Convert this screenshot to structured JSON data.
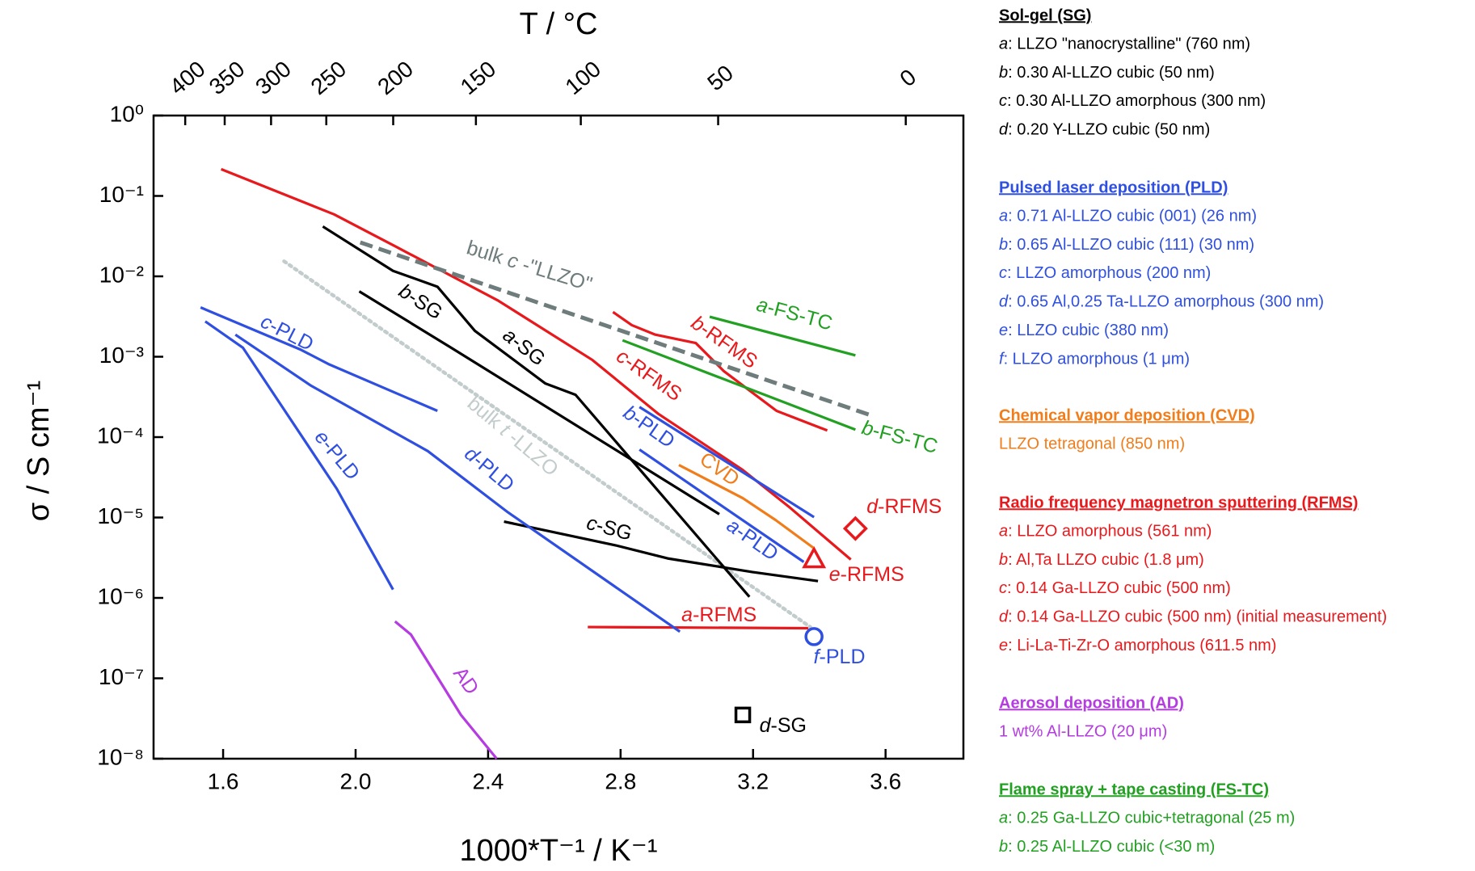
{
  "chart_data": {
    "type": "line",
    "x_label": "1000*T⁻¹ / K⁻¹",
    "y_label": "σ / S cm⁻¹",
    "x2_label": "T / °C",
    "xlim": [
      1.39,
      3.835
    ],
    "xticks": [
      1.6,
      {
        "value": 2,
        "label": "2.0"
      },
      2.4,
      2.8,
      3.2,
      3.6
    ],
    "x2ticks": [
      400,
      350,
      300,
      250,
      200,
      150,
      100,
      50,
      0
    ],
    "ylim": [
      1e-08,
      1
    ],
    "log_y": true,
    "yticks": [
      {
        "value": 1,
        "label": "10⁰"
      },
      {
        "value": 0.1,
        "label": "10⁻¹"
      },
      {
        "value": 0.01,
        "label": "10⁻²"
      },
      {
        "value": 0.001,
        "label": "10⁻³"
      },
      {
        "value": 0.0001,
        "label": "10⁻⁴"
      },
      {
        "value": 1e-05,
        "label": "10⁻⁵"
      },
      {
        "value": 1e-06,
        "label": "10⁻⁶"
      },
      {
        "value": 1e-07,
        "label": "10⁻⁷"
      },
      {
        "value": 1e-08,
        "label": "10⁻⁸"
      }
    ],
    "series": [
      {
        "name": "c-RFMS",
        "color": "#e8191c",
        "x": [
          1.594,
          1.935,
          2.119,
          2.431,
          2.715,
          2.913,
          3.169,
          3.311,
          3.495
        ],
        "values": [
          0.215,
          0.059,
          0.0237,
          0.00497,
          0.00091,
          0.000196,
          3.9e-05,
          1.33e-05,
          3e-06
        ]
      },
      {
        "name": "b-RFMS",
        "color": "#e8191c",
        "x": [
          2.777,
          2.834,
          2.905,
          3.027,
          3.112,
          3.271,
          3.424
        ],
        "values": [
          0.0036,
          0.00247,
          0.00188,
          0.00148,
          0.00066,
          0.000212,
          0.000121
        ]
      },
      {
        "name": "a-RFMS",
        "color": "#e8191c",
        "x": [
          2.701,
          3.367
        ],
        "values": [
          4.34e-07,
          4.2e-07
        ]
      },
      {
        "name": "d-RFMS",
        "color": "#e8191c",
        "marker": "diamond",
        "x": [
          3.509
        ],
        "values": [
          7.3e-06
        ]
      },
      {
        "name": "e-RFMS",
        "color": "#e8191c",
        "marker": "triangle",
        "x": [
          3.384
        ],
        "values": [
          3e-06
        ]
      },
      {
        "name": "a-FS-TC",
        "color": "#22a022",
        "x": [
          3.069,
          3.509
        ],
        "values": [
          0.00314,
          0.00104
        ]
      },
      {
        "name": "b-FS-TC",
        "color": "#22a022",
        "x": [
          2.806,
          3.509
        ],
        "values": [
          0.0016,
          0.000124
        ]
      },
      {
        "name": "bulk c -\"LLZO\"",
        "color": "#6f7c7c",
        "style": "dashed",
        "x": [
          2.014,
          3.566
        ],
        "values": [
          0.0264,
          0.000181
        ]
      },
      {
        "name": "bulk t -LLZO",
        "color": "#c3cccc",
        "style": "dotted",
        "x": [
          1.784,
          3.373
        ],
        "values": [
          0.0154,
          4.34e-07
        ]
      },
      {
        "name": "a-SG",
        "color": "#000000",
        "x": [
          1.901,
          2.113,
          2.247,
          2.36,
          2.573,
          2.664,
          3.189
        ],
        "values": [
          0.0417,
          0.0117,
          0.00743,
          0.0021,
          0.000464,
          0.000336,
          1.03e-06
        ]
      },
      {
        "name": "b-SG",
        "color": "#000000",
        "x": [
          2.011,
          2.289,
          3.098
        ],
        "values": [
          0.0065,
          0.00129,
          1.1e-05
        ]
      },
      {
        "name": "c-SG",
        "color": "#000000",
        "x": [
          2.448,
          2.786,
          2.942,
          3.197,
          3.396
        ],
        "values": [
          8.9e-06,
          4.5e-06,
          3.1e-06,
          2.1e-06,
          1.62e-06
        ]
      },
      {
        "name": "d-SG",
        "color": "#000000",
        "marker": "square",
        "x": [
          3.169
        ],
        "values": [
          3.5e-08
        ]
      },
      {
        "name": "c-PLD",
        "color": "#2f4fe0",
        "x": [
          1.532,
          1.835,
          1.921,
          2.247
        ],
        "values": [
          0.0041,
          0.00122,
          0.0008,
          0.000212
        ]
      },
      {
        "name": "e-PLD",
        "color": "#2f4fe0",
        "x": [
          1.546,
          1.66,
          1.943,
          2.113
        ],
        "values": [
          0.00275,
          0.00129,
          2.28e-05,
          1.27e-06
        ]
      },
      {
        "name": "d-PLD",
        "color": "#2f4fe0",
        "x": [
          1.637,
          1.864,
          2.218,
          2.46,
          2.979
        ],
        "values": [
          0.00188,
          0.00044,
          6.7e-05,
          1.16e-05,
          3.8e-07
        ]
      },
      {
        "name": "b-PLD",
        "color": "#2f4fe0",
        "x": [
          2.857,
          3.384
        ],
        "values": [
          0.000237,
          1.01e-05
        ]
      },
      {
        "name": "a-PLD",
        "color": "#2f4fe0",
        "x": [
          2.857,
          3.353
        ],
        "values": [
          7e-05,
          2.8e-06
        ]
      },
      {
        "name": "f-PLD",
        "color": "#2f4fe0",
        "marker": "circle",
        "x": [
          3.384
        ],
        "values": [
          3.3e-07
        ]
      },
      {
        "name": "CVD",
        "color": "#f07d1a",
        "x": [
          2.976,
          3.169,
          3.268,
          3.382
        ],
        "values": [
          4.5e-05,
          1.74e-05,
          9.3e-06,
          4.2e-06
        ]
      },
      {
        "name": "AD",
        "color": "#b43ce0",
        "x": [
          2.119,
          2.167,
          2.318,
          2.426
        ],
        "values": [
          5.1e-07,
          3.5e-07,
          3.5e-08,
          1e-08
        ]
      }
    ],
    "legend_panel": [
      {
        "heading": "Sol-gel (SG)",
        "color": "#000000",
        "items": [
          "a: LLZO \"nanocrystalline\" (760 nm)",
          "b: 0.30 Al-LLZO cubic (50 nm)",
          "c: 0.30 Al-LLZO amorphous (300 nm)",
          "d: 0.20 Y-LLZO cubic (50 nm)"
        ]
      },
      {
        "heading": "Pulsed laser deposition (PLD)",
        "color": "#2f4fe0",
        "items": [
          "a: 0.71 Al-LLZO cubic (001) (26 nm)",
          "b: 0.65 Al-LLZO cubic (111) (30 nm)",
          "c: LLZO amorphous (200 nm)",
          "d: 0.65 Al,0.25 Ta-LLZO amorphous (300 nm)",
          "e: LLZO cubic (380 nm)",
          "f:  LLZO amorphous (1 μm)"
        ]
      },
      {
        "heading": "Chemical vapor deposition (CVD)",
        "color": "#f07d1a",
        "items": [
          "LLZO tetragonal (850 nm)"
        ]
      },
      {
        "heading": "Radio frequency magnetron sputtering (RFMS)",
        "color": "#e8191c",
        "items": [
          "a: LLZO amorphous (561 nm)",
          "b: Al,Ta LLZO cubic (1.8 μm)",
          "c: 0.14 Ga-LLZO cubic (500 nm)",
          "d: 0.14 Ga-LLZO cubic (500 nm) (initial measurement)",
          "e: Li-La-Ti-Zr-O amorphous (611.5 nm)"
        ]
      },
      {
        "heading": "Aerosol deposition (AD)",
        "color": "#b43ce0",
        "items": [
          "1 wt% Al-LLZO (20 μm)"
        ]
      },
      {
        "heading": "Flame spray + tape casting (FS-TC)",
        "color": "#22a022",
        "items": [
          "a: 0.25 Ga-LLZO cubic+tetragonal (25 m)",
          "b: 0.25 Al-LLZO cubic (<30 m)"
        ]
      }
    ]
  }
}
